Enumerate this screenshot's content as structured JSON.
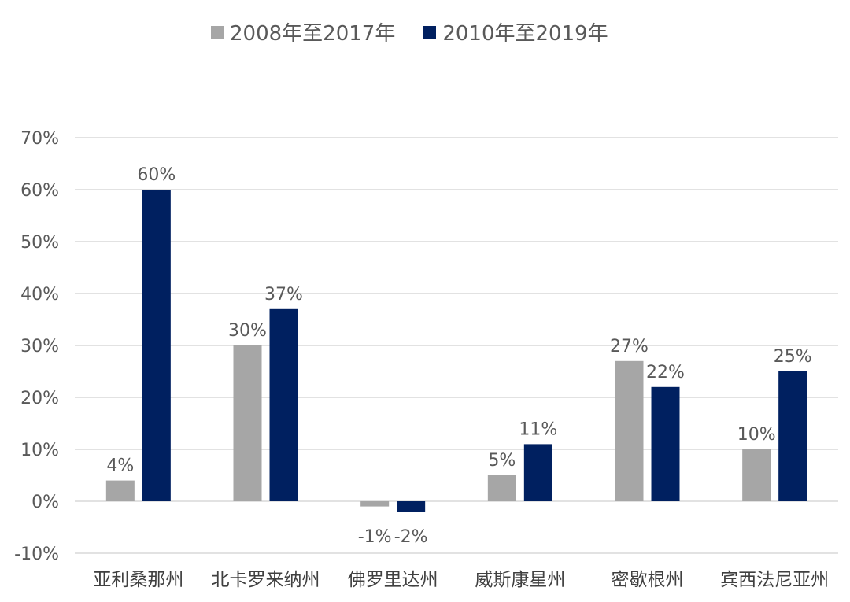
{
  "chart_data": {
    "type": "bar",
    "title": "",
    "xlabel": "",
    "ylabel": "",
    "categories": [
      "亚利桑那州",
      "北卡罗来纳州",
      "佛罗里达州",
      "威斯康星州",
      "密歇根州",
      "宾西法尼亚州"
    ],
    "series": [
      {
        "name": "2008年至2017年",
        "color": "#a6a6a6",
        "values": [
          4,
          30,
          -1,
          5,
          27,
          10
        ],
        "labels": [
          "4%",
          "30%",
          "-1%",
          "5%",
          "27%",
          "10%"
        ]
      },
      {
        "name": "2010年至2019年",
        "color": "#002060",
        "values": [
          60,
          37,
          -2,
          11,
          22,
          25
        ],
        "labels": [
          "60%",
          "37%",
          "-2%",
          "11%",
          "22%",
          "25%"
        ]
      }
    ],
    "ylim": [
      -10,
      70
    ],
    "yticks": [
      70,
      60,
      50,
      40,
      30,
      20,
      10,
      0,
      -10
    ],
    "ytick_labels": [
      "70%",
      "60%",
      "50%",
      "40%",
      "30%",
      "20%",
      "10%",
      "0%",
      "-10%"
    ],
    "grid": true,
    "legend_position": "top"
  }
}
